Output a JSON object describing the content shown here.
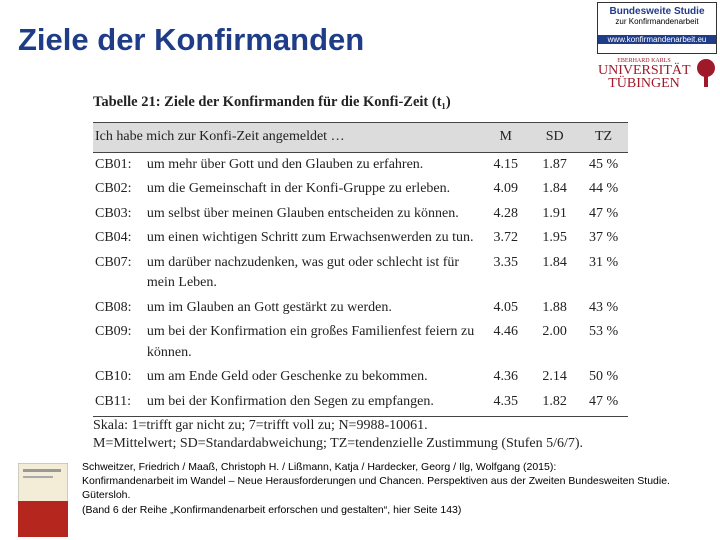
{
  "title": "Ziele der Konfirmanden",
  "logo": {
    "study": "Bundesweite Studie",
    "study_sub": "zur Konfirmandenarbeit",
    "url": "www.konfirmandenarbeit.eu",
    "uni_small": "EBERHARD KARLS",
    "uni_1": "UNIVERSITÄT",
    "uni_2": "TÜBINGEN"
  },
  "table": {
    "caption": "Tabelle 21: Ziele der Konfirmanden für die Konfi-Zeit (t₁)",
    "header": [
      "Ich habe mich zur Konfi-Zeit angemeldet …",
      "M",
      "SD",
      "TZ"
    ],
    "rows": [
      [
        "CB01:",
        "um mehr über Gott und den Glauben zu erfahren.",
        "4.15",
        "1.87",
        "45 %"
      ],
      [
        "CB02:",
        "um die Gemeinschaft in der Konfi-Gruppe zu erleben.",
        "4.09",
        "1.84",
        "44 %"
      ],
      [
        "CB03:",
        "um selbst über meinen Glauben entscheiden zu können.",
        "4.28",
        "1.91",
        "47 %"
      ],
      [
        "CB04:",
        "um einen wichtigen Schritt zum Erwachsenwerden zu tun.",
        "3.72",
        "1.95",
        "37 %"
      ],
      [
        "CB07:",
        "um darüber nachzudenken, was gut oder schlecht ist für mein Leben.",
        "3.35",
        "1.84",
        "31 %"
      ],
      [
        "CB08:",
        "um im Glauben an Gott gestärkt zu werden.",
        "4.05",
        "1.88",
        "43 %"
      ],
      [
        "CB09:",
        "um bei der Konfirmation ein großes Familienfest feiern zu können.",
        "4.46",
        "2.00",
        "53 %"
      ],
      [
        "CB10:",
        "um am Ende Geld oder Geschenke zu bekommen.",
        "4.36",
        "2.14",
        "50 %"
      ],
      [
        "CB11:",
        "um bei der Konfirmation den Segen zu empfangen.",
        "4.35",
        "1.82",
        "47 %"
      ]
    ],
    "notes": [
      "Skala: 1=trifft gar nicht zu; 7=trifft voll zu; N=9988-10061.",
      "M=Mittelwert; SD=Standardabweichung; TZ=tendenzielle Zustimmung (Stufen 5/6/7)."
    ]
  },
  "citation": [
    "Schweitzer, Friedrich / Maaß, Christoph H. / Lißmann, Katja / Hardecker, Georg / Ilg, Wolfgang (2015):",
    "Konfirmandenarbeit im Wandel – Neue Herausforderungen und Chancen. Perspektiven aus der Zweiten Bundesweiten Studie.",
    "Gütersloh.",
    "(Band 6 der Reihe „Konfirmandenarbeit erforschen und gestalten“, hier Seite 143)"
  ]
}
